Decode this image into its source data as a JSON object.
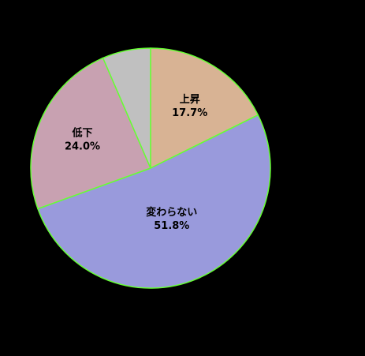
{
  "chart_data": {
    "type": "pie",
    "slices": [
      {
        "name": "上昇",
        "value": 17.7,
        "label": "17.7%",
        "color": "#D8B394"
      },
      {
        "name": "変わらない",
        "value": 51.8,
        "label": "51.8%",
        "color": "#999ADC"
      },
      {
        "name": "低下",
        "value": 24.0,
        "label": "24.0%",
        "color": "#C8A1B1"
      },
      {
        "name": "",
        "value": 6.5,
        "label": "",
        "color": "#C0C0C0"
      }
    ],
    "start_angle": "12 o'clock",
    "direction": "clockwise",
    "legend": "none",
    "background": "#000000",
    "slice_border_color": "#66FF33"
  }
}
